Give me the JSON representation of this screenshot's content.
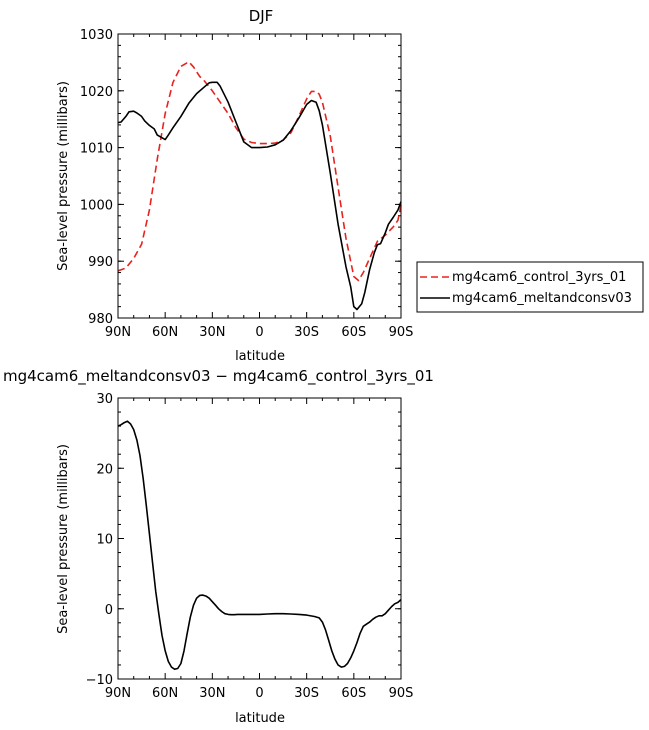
{
  "chart_data": [
    {
      "type": "line",
      "title": "DJF",
      "xlabel": "latitude",
      "ylabel": "Sea-level pressure (millibars)",
      "x_ticks": [
        -90,
        -60,
        -30,
        0,
        30,
        60,
        90
      ],
      "x_tick_labels": [
        "90N",
        "60N",
        "30N",
        "0",
        "30S",
        "60S",
        "90S"
      ],
      "xlim": [
        -90,
        90
      ],
      "ylim": [
        980,
        1030
      ],
      "y_ticks": [
        980,
        990,
        1000,
        1010,
        1020,
        1030
      ],
      "y_tick_labels": [
        "980",
        "990",
        "1000",
        "1010",
        "1020",
        "1030"
      ],
      "legend_position": "right",
      "series": [
        {
          "name": "mg4cam6_control_3yrs_01",
          "color": "#e8231f",
          "dash": "dashed",
          "x": [
            -90,
            -85,
            -80,
            -75,
            -70,
            -65,
            -60,
            -55,
            -50,
            -45,
            -42,
            -38,
            -35,
            -30,
            -25,
            -20,
            -15,
            -10,
            -5,
            0,
            5,
            10,
            15,
            20,
            25,
            30,
            33,
            36,
            38,
            40,
            45,
            50,
            55,
            60,
            63,
            66,
            70,
            75,
            80,
            85,
            88,
            90
          ],
          "values": [
            988.3,
            988.8,
            990.5,
            993,
            999,
            1008,
            1016,
            1021.5,
            1024.3,
            1025.1,
            1024.2,
            1022.5,
            1021.7,
            1020,
            1018,
            1016,
            1013.5,
            1011.5,
            1010.9,
            1010.7,
            1010.7,
            1010.8,
            1011.3,
            1012.6,
            1015.5,
            1018.6,
            1019.9,
            1019.9,
            1019.4,
            1018,
            1012,
            1003,
            994,
            987.3,
            986.6,
            988,
            990.5,
            993.5,
            994.6,
            996,
            997.2,
            999.8
          ]
        },
        {
          "name": "mg4cam6_meltandconsv03",
          "color": "#000000",
          "dash": "solid",
          "x": [
            -90,
            -88,
            -85,
            -83,
            -80,
            -78,
            -75,
            -73,
            -70,
            -67,
            -65,
            -60,
            -58,
            -55,
            -50,
            -45,
            -40,
            -35,
            -32,
            -30,
            -27,
            -25,
            -20,
            -15,
            -10,
            -5,
            0,
            5,
            10,
            15,
            20,
            25,
            30,
            33,
            36,
            38,
            40,
            45,
            50,
            55,
            58,
            60,
            62,
            65,
            67,
            70,
            73,
            75,
            77,
            80,
            82,
            85,
            88,
            90
          ],
          "values": [
            1014.4,
            1014.5,
            1015.5,
            1016.3,
            1016.4,
            1016.1,
            1015.5,
            1014.7,
            1013.9,
            1013.3,
            1012.2,
            1011.4,
            1012.2,
            1013.5,
            1015.5,
            1017.8,
            1019.5,
            1020.7,
            1021.4,
            1021.5,
            1021.5,
            1020.8,
            1018,
            1014.5,
            1011,
            1010,
            1010,
            1010.1,
            1010.5,
            1011.3,
            1013,
            1015.2,
            1017.6,
            1018.3,
            1018,
            1016.5,
            1014,
            1005.5,
            996.5,
            989,
            985.5,
            982,
            981.5,
            982.5,
            984.5,
            988.5,
            991.5,
            992.9,
            993.1,
            995,
            996.5,
            997.7,
            999,
            1000.5
          ]
        }
      ]
    },
    {
      "type": "line",
      "title": "mg4cam6_meltandconsv03 − mg4cam6_control_3yrs_01",
      "xlabel": "latitude",
      "ylabel": "Sea-level pressure (millibars)",
      "x_ticks": [
        -90,
        -60,
        -30,
        0,
        30,
        60,
        90
      ],
      "x_tick_labels": [
        "90N",
        "60N",
        "30N",
        "0",
        "30S",
        "60S",
        "90S"
      ],
      "xlim": [
        -90,
        90
      ],
      "ylim": [
        -10,
        30
      ],
      "y_ticks": [
        -10,
        0,
        10,
        20,
        30
      ],
      "y_tick_labels": [
        "−10",
        "0",
        "10",
        "20",
        "30"
      ],
      "series": [
        {
          "color": "#000000",
          "dash": "solid",
          "x": [
            -90,
            -88,
            -86,
            -84,
            -82,
            -80,
            -78,
            -76,
            -74,
            -72,
            -70,
            -68,
            -66,
            -64,
            -62,
            -60,
            -58,
            -56,
            -54,
            -52,
            -50,
            -48,
            -46,
            -44,
            -42,
            -40,
            -38,
            -36,
            -34,
            -32,
            -30,
            -28,
            -26,
            -24,
            -22,
            -20,
            -18,
            -16,
            -14,
            -12,
            -10,
            -6,
            -2,
            0,
            5,
            10,
            15,
            20,
            25,
            30,
            35,
            38,
            40,
            42,
            44,
            46,
            48,
            50,
            52,
            54,
            56,
            58,
            60,
            62,
            64,
            66,
            68,
            70,
            72,
            74,
            76,
            78,
            80,
            82,
            84,
            86,
            88,
            90
          ],
          "values": [
            26,
            26.2,
            26.5,
            26.7,
            26.3,
            25.5,
            24,
            21.8,
            18.5,
            14.7,
            10.7,
            6.5,
            2.5,
            -0.8,
            -3.8,
            -6,
            -7.5,
            -8.3,
            -8.6,
            -8.5,
            -7.8,
            -6,
            -3.5,
            -1.2,
            0.5,
            1.5,
            1.9,
            1.95,
            1.8,
            1.5,
            1,
            0.5,
            0,
            -0.4,
            -0.7,
            -0.8,
            -0.85,
            -0.85,
            -0.8,
            -0.8,
            -0.8,
            -0.8,
            -0.8,
            -0.8,
            -0.75,
            -0.7,
            -0.7,
            -0.75,
            -0.8,
            -0.9,
            -1.1,
            -1.3,
            -1.9,
            -3,
            -4.5,
            -6,
            -7.2,
            -8,
            -8.3,
            -8.2,
            -7.8,
            -7,
            -6,
            -4.8,
            -3.5,
            -2.5,
            -2.2,
            -1.9,
            -1.5,
            -1.2,
            -1,
            -1,
            -0.7,
            -0.2,
            0.3,
            0.7,
            0.9,
            1.3
          ]
        }
      ]
    }
  ]
}
